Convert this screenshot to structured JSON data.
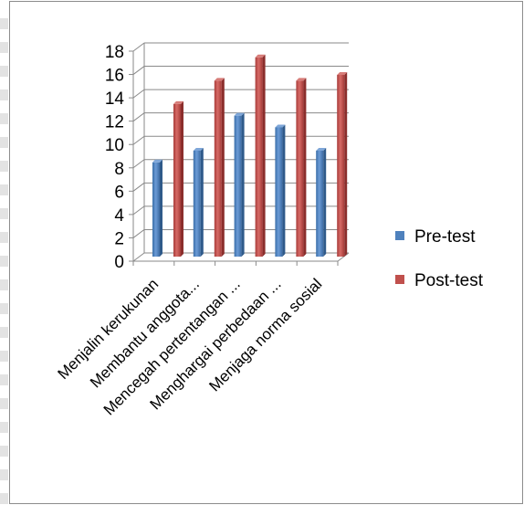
{
  "chart_data": {
    "type": "bar",
    "style": "3d-clustered-column",
    "categories": [
      "Menjalin kerukunan",
      "Membantu anggota...",
      "Mencegah pertentangan ...",
      "Menghargai perbedaan ...",
      "Menjaga norma sosial"
    ],
    "series": [
      {
        "name": "Pre-test",
        "color": "#4f81bd",
        "values": [
          8,
          9,
          12,
          11,
          9
        ]
      },
      {
        "name": "Post-test",
        "color": "#c0504d",
        "values": [
          13,
          15,
          17,
          15,
          15.5
        ]
      }
    ],
    "title": "",
    "xlabel": "",
    "ylabel": "",
    "ylim": [
      0,
      18
    ],
    "yticks": [
      0,
      2,
      4,
      6,
      8,
      10,
      12,
      14,
      16,
      18
    ],
    "grid": true,
    "legend_position": "right"
  }
}
